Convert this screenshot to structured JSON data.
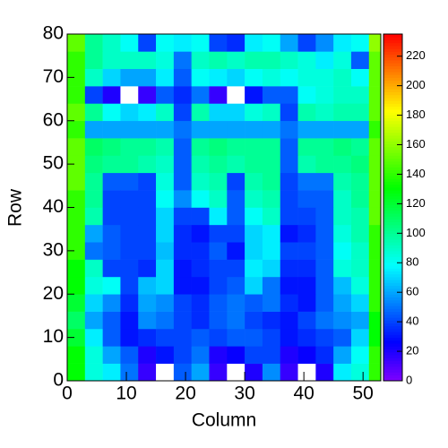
{
  "chart_data": {
    "type": "heatmap",
    "x_label": "Column",
    "y_label": "Row",
    "xbins": [
      0,
      3,
      6,
      9,
      12,
      15,
      18,
      21,
      24,
      27,
      30,
      33,
      36,
      39,
      42,
      45,
      48,
      51,
      53
    ],
    "ybins": [
      0,
      4,
      8,
      12,
      16,
      20,
      24,
      28,
      32,
      36,
      40,
      44,
      48,
      52,
      56,
      60,
      64,
      68,
      72,
      76,
      80
    ],
    "values": [
      [
        130,
        85,
        75,
        50,
        15,
        0,
        45,
        60,
        15,
        0,
        20,
        55,
        15,
        0,
        20,
        75,
        85,
        140
      ],
      [
        130,
        85,
        60,
        45,
        20,
        30,
        40,
        50,
        20,
        25,
        40,
        40,
        20,
        25,
        35,
        60,
        80,
        140
      ],
      [
        120,
        75,
        45,
        30,
        35,
        40,
        40,
        45,
        40,
        45,
        45,
        40,
        30,
        35,
        40,
        45,
        70,
        130
      ],
      [
        110,
        60,
        45,
        30,
        55,
        50,
        40,
        35,
        45,
        50,
        40,
        35,
        30,
        40,
        50,
        55,
        60,
        130
      ],
      [
        120,
        70,
        55,
        35,
        60,
        55,
        40,
        35,
        45,
        50,
        45,
        50,
        35,
        30,
        45,
        60,
        70,
        140
      ],
      [
        130,
        85,
        80,
        40,
        65,
        70,
        30,
        30,
        40,
        45,
        70,
        50,
        30,
        30,
        45,
        65,
        85,
        140
      ],
      [
        130,
        90,
        40,
        40,
        35,
        70,
        30,
        35,
        40,
        40,
        75,
        70,
        35,
        35,
        45,
        85,
        90,
        140
      ],
      [
        140,
        50,
        45,
        40,
        40,
        65,
        35,
        35,
        45,
        30,
        70,
        75,
        40,
        40,
        45,
        80,
        90,
        140
      ],
      [
        140,
        60,
        45,
        40,
        40,
        70,
        35,
        30,
        40,
        40,
        70,
        75,
        30,
        35,
        45,
        85,
        95,
        140
      ],
      [
        140,
        95,
        40,
        40,
        40,
        70,
        40,
        40,
        75,
        45,
        80,
        90,
        40,
        40,
        45,
        90,
        95,
        150
      ],
      [
        140,
        100,
        40,
        40,
        40,
        80,
        55,
        80,
        90,
        45,
        90,
        95,
        40,
        45,
        45,
        90,
        100,
        150
      ],
      [
        150,
        100,
        45,
        45,
        40,
        85,
        45,
        90,
        95,
        40,
        95,
        100,
        40,
        50,
        50,
        95,
        100,
        150
      ],
      [
        150,
        105,
        100,
        100,
        95,
        90,
        45,
        95,
        100,
        95,
        100,
        100,
        45,
        95,
        100,
        100,
        105,
        150
      ],
      [
        150,
        110,
        105,
        100,
        100,
        95,
        45,
        100,
        105,
        100,
        100,
        100,
        45,
        100,
        100,
        105,
        100,
        150
      ],
      [
        140,
        60,
        60,
        60,
        60,
        60,
        50,
        60,
        60,
        60,
        60,
        60,
        50,
        60,
        60,
        60,
        60,
        140
      ],
      [
        150,
        100,
        80,
        70,
        75,
        90,
        40,
        95,
        70,
        70,
        85,
        90,
        40,
        95,
        90,
        95,
        95,
        150
      ],
      [
        140,
        40,
        20,
        0,
        15,
        45,
        35,
        50,
        15,
        0,
        30,
        45,
        45,
        80,
        85,
        90,
        90,
        150
      ],
      [
        140,
        90,
        70,
        60,
        60,
        75,
        45,
        80,
        75,
        70,
        80,
        85,
        80,
        85,
        85,
        90,
        80,
        150
      ],
      [
        140,
        100,
        90,
        90,
        90,
        85,
        50,
        90,
        95,
        90,
        95,
        95,
        90,
        85,
        75,
        85,
        45,
        150
      ],
      [
        150,
        100,
        90,
        80,
        40,
        80,
        75,
        80,
        40,
        35,
        75,
        80,
        60,
        40,
        55,
        75,
        80,
        160
      ]
    ],
    "xlim": [
      0,
      53
    ],
    "ylim": [
      0,
      80
    ],
    "zlim": [
      0,
      235
    ],
    "xticks": [
      0,
      10,
      20,
      30,
      40,
      50
    ],
    "yticks": [
      0,
      10,
      20,
      30,
      40,
      50,
      60,
      70,
      80
    ],
    "zticks": [
      0,
      20,
      40,
      60,
      80,
      100,
      120,
      140,
      160,
      180,
      200,
      220
    ],
    "colormap": "rainbow",
    "zero_color": "#ffffff"
  }
}
